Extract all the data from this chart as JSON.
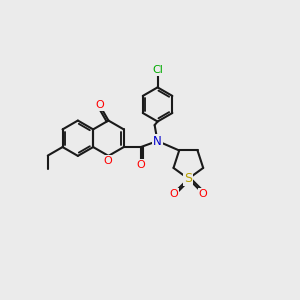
{
  "bg_color": "#ebebeb",
  "bond_color": "#1a1a1a",
  "bond_width": 1.5,
  "atom_colors": {
    "O": "#ff0000",
    "N": "#0000cc",
    "S": "#b8a000",
    "Cl": "#00aa00"
  },
  "figsize": [
    3.0,
    3.0
  ],
  "dpi": 100
}
